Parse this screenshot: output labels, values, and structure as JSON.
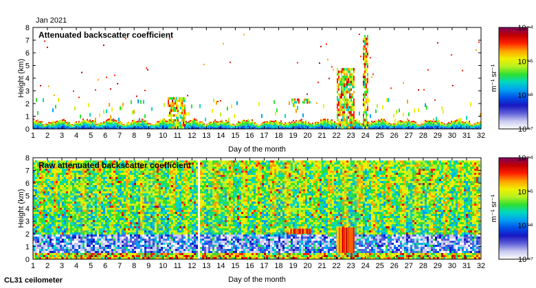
{
  "header": {
    "date_label": "Jan 2021"
  },
  "footer": {
    "instrument": "CL31 ceilometer"
  },
  "colorbar_palette": [
    "#ffffff",
    "#c8c8f0",
    "#6060d8",
    "#1818c0",
    "#0050e8",
    "#00a0f0",
    "#00d8c0",
    "#30e030",
    "#b8f020",
    "#f0f000",
    "#ffa000",
    "#ff2000",
    "#c00000",
    "#800060"
  ],
  "chart_data": [
    {
      "type": "heatmap",
      "title": "Attenuated backscatter coefficient",
      "xlabel": "Day of the month",
      "ylabel": "Height (km)",
      "xlim": [
        1,
        32
      ],
      "ylim": [
        0,
        8
      ],
      "x_ticks": [
        "1",
        "2",
        "3",
        "4",
        "5",
        "6",
        "7",
        "8",
        "9",
        "10",
        "11",
        "12",
        "13",
        "14",
        "15",
        "16",
        "17",
        "18",
        "19",
        "20",
        "21",
        "22",
        "23",
        "24",
        "25",
        "26",
        "27",
        "28",
        "29",
        "30",
        "31",
        "32"
      ],
      "y_ticks": [
        "0",
        "1",
        "2",
        "3",
        "4",
        "5",
        "6",
        "7",
        "8"
      ],
      "colorbar": {
        "label": "m⁻¹ sr⁻¹",
        "scale": "log",
        "ticks": [
          "10⁻⁷",
          "10⁻⁶",
          "10⁻⁵",
          "10⁻⁴"
        ]
      },
      "features": [
        {
          "day_start": 1,
          "day_end": 32,
          "height_km": [
            0,
            0.6
          ],
          "level": "high",
          "note": "boundary layer signal"
        },
        {
          "day_start": 10.3,
          "day_end": 11.5,
          "height_km": [
            0,
            2.5
          ],
          "level": "high"
        },
        {
          "day_start": 18.8,
          "day_end": 20.2,
          "height_km": [
            2.0,
            2.4
          ],
          "level": "high"
        },
        {
          "day_start": 22,
          "day_end": 23.2,
          "height_km": [
            0,
            4.8
          ],
          "level": "high"
        },
        {
          "day_start": 23.8,
          "day_end": 24.2,
          "height_km": [
            0,
            7.4
          ],
          "level": "high"
        }
      ]
    },
    {
      "type": "heatmap",
      "title": "Raw attenuated backscatter coefficient",
      "xlabel": "Day of the month",
      "ylabel": "Height (km)",
      "xlim": [
        1,
        32
      ],
      "ylim": [
        0,
        8
      ],
      "x_ticks": [
        "1",
        "2",
        "3",
        "4",
        "5",
        "6",
        "7",
        "8",
        "9",
        "10",
        "11",
        "12",
        "13",
        "14",
        "15",
        "16",
        "17",
        "18",
        "19",
        "20",
        "21",
        "22",
        "23",
        "24",
        "25",
        "26",
        "27",
        "28",
        "29",
        "30",
        "31",
        "32"
      ],
      "y_ticks": [
        "0",
        "1",
        "2",
        "3",
        "4",
        "5",
        "6",
        "7",
        "8"
      ],
      "colorbar": {
        "label": "m⁻¹ sr⁻¹",
        "scale": "log",
        "ticks": [
          "10⁻⁷",
          "10⁻⁶",
          "10⁻⁵",
          "10⁻⁴"
        ]
      },
      "features": [
        {
          "day_start": 1,
          "day_end": 32,
          "height_km": [
            2,
            7.8
          ],
          "level": "medium",
          "note": "noise field"
        },
        {
          "day_start": 1,
          "day_end": 32,
          "height_km": [
            0,
            0.5
          ],
          "level": "high"
        },
        {
          "day_start": 12.35,
          "day_end": 12.45,
          "height_km": [
            0,
            8
          ],
          "level": "none",
          "note": "data gap"
        }
      ]
    }
  ]
}
